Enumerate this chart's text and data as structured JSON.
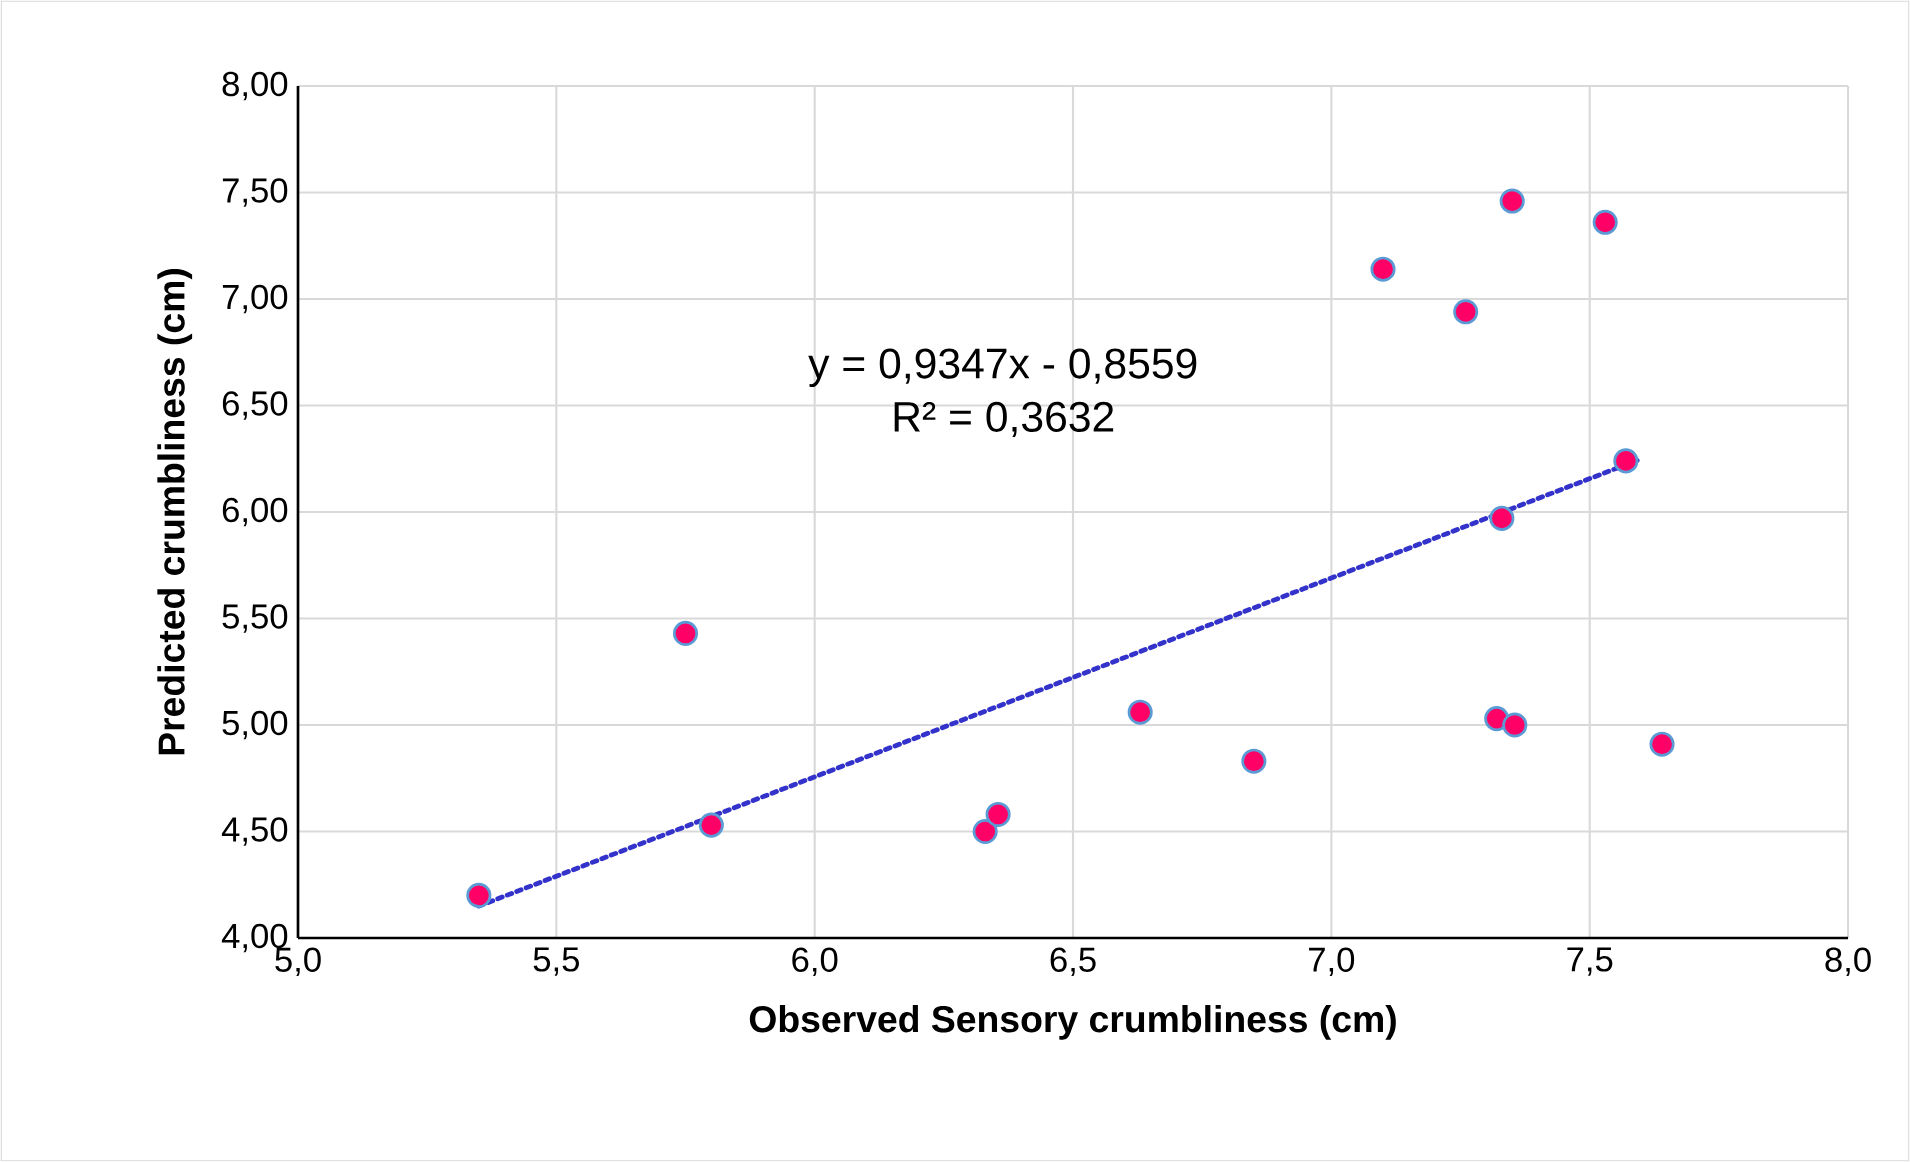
{
  "chart_data": {
    "type": "scatter",
    "xlabel": "Observed Sensory crumbliness (cm)",
    "ylabel": "Predicted crumbliness (cm)",
    "annotations": [
      "y = 0,9347x - 0,8559",
      "R² = 0,3632"
    ],
    "series": [
      {
        "color": "#ff0066",
        "marker": "circle",
        "x": [
          5.35,
          5.75,
          5.8,
          6.33,
          6.355,
          6.63,
          6.85,
          7.1,
          7.26,
          7.35,
          7.53,
          7.33,
          7.57,
          7.32,
          7.355,
          7.64
        ],
        "values": [
          4.2,
          5.43,
          4.53,
          4.5,
          4.58,
          5.06,
          4.83,
          7.14,
          6.94,
          7.46,
          7.36,
          5.97,
          6.24,
          5.03,
          5.0,
          4.91
        ]
      },
      {
        "type": "line",
        "color": "#3333cc",
        "line_style": "dotted",
        "marker": "none",
        "x": [
          5.35,
          7.6
        ],
        "values": [
          4.15,
          6.25
        ]
      }
    ],
    "xlim": [
      5,
      8
    ],
    "ylim": [
      4,
      8
    ],
    "xticks": [
      {
        "value": 5,
        "label": "5,0"
      },
      {
        "value": 5.5,
        "label": "5,5"
      },
      {
        "value": 6,
        "label": "6,0"
      },
      {
        "value": 6.5,
        "label": "6,5"
      },
      {
        "value": 7,
        "label": "7,0"
      },
      {
        "value": 7.5,
        "label": "7,5"
      },
      {
        "value": 8,
        "label": "8,0"
      }
    ],
    "yticks": [
      {
        "value": 4,
        "label": "4,00"
      },
      {
        "value": 4.5,
        "label": "4,50"
      },
      {
        "value": 5,
        "label": "5,00"
      },
      {
        "value": 5.5,
        "label": "5,50"
      },
      {
        "value": 6,
        "label": "6,00"
      },
      {
        "value": 6.5,
        "label": "6,50"
      },
      {
        "value": 7,
        "label": "7,00"
      },
      {
        "value": 7.5,
        "label": "7,50"
      },
      {
        "value": 8,
        "label": "8,00"
      }
    ],
    "grid": true
  }
}
